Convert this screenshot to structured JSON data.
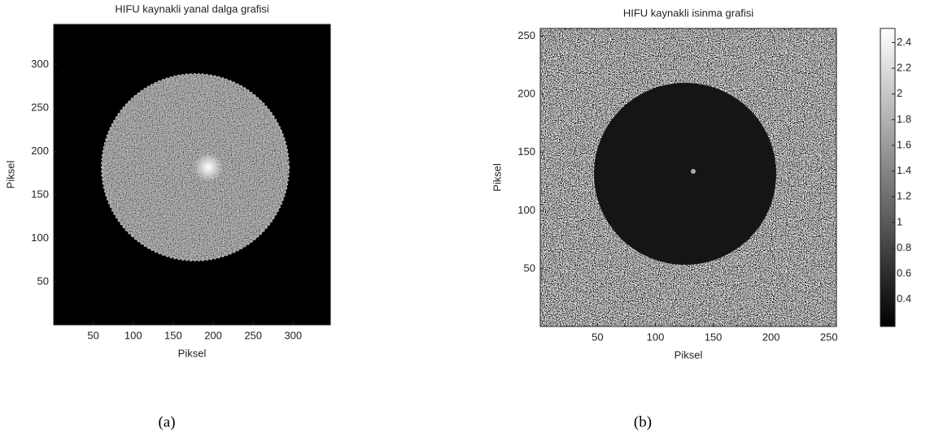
{
  "chart_data": [
    {
      "type": "image",
      "title": "HIFU kaynakli yanal dalga grafisi",
      "xlabel": "Piksel",
      "ylabel": "Piksel",
      "xlim": [
        0.5,
        346.5
      ],
      "ylim": [
        0.5,
        346.5
      ],
      "xticks": [
        50,
        100,
        150,
        200,
        250,
        300
      ],
      "yticks": [
        50,
        100,
        150,
        200,
        250,
        300
      ],
      "caption": "(a)"
    },
    {
      "type": "image",
      "title": "HIFU kaynakli isinma grafisi",
      "xlabel": "Piksel",
      "ylabel": "Piksel",
      "xlim": [
        0.5,
        256.5
      ],
      "ylim": [
        0.5,
        256.5
      ],
      "xticks": [
        50,
        100,
        150,
        200,
        250
      ],
      "yticks": [
        50,
        100,
        150,
        200,
        250
      ],
      "caption": "(b)",
      "colorbar": {
        "clim": [
          0.19,
          2.51
        ],
        "ticks": [
          0.4,
          0.6,
          0.8,
          1,
          1.2,
          1.4,
          1.6,
          1.8,
          2,
          2.2,
          2.4
        ]
      }
    }
  ]
}
